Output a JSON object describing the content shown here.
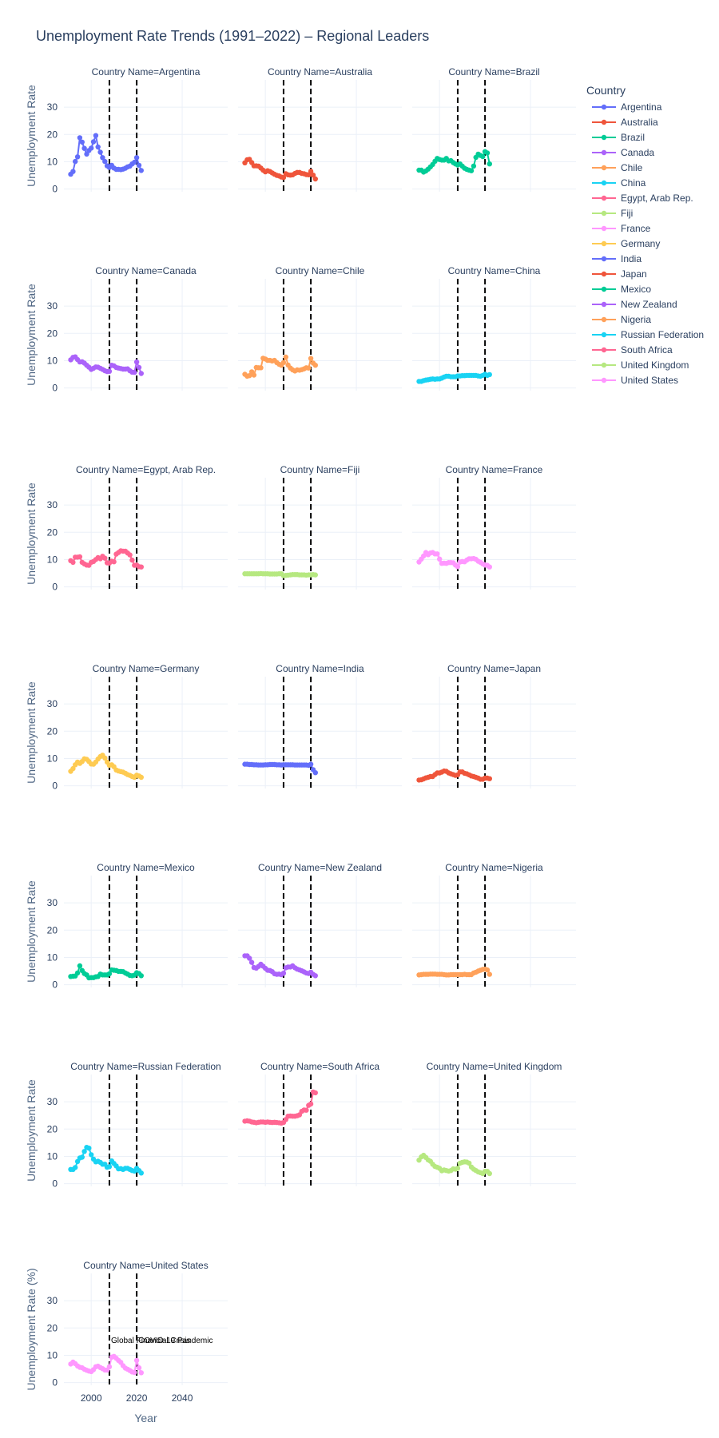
{
  "chart_data": {
    "type": "line",
    "title": "Unemployment Rate Trends (1991–2022) – Regional Leaders",
    "xlabel": "Year",
    "ylabel": "Unemployment Rate",
    "ylabel_last": "Unemployment Rate (%)",
    "facet_prefix": "Country Name=",
    "legend_title": "Country",
    "x_range": [
      1988,
      2060
    ],
    "y_range": [
      -1,
      40
    ],
    "x_ticks": [
      2000,
      2020,
      2040
    ],
    "y_ticks": [
      0,
      10,
      20,
      30
    ],
    "vlines": [
      {
        "x": 2008,
        "label": "Global Financial Crisis"
      },
      {
        "x": 2020,
        "label": "COVID-19 Pandemic"
      }
    ],
    "years_start": 1991,
    "series": [
      {
        "name": "Argentina",
        "color": "#636efa",
        "values": [
          5.4,
          6.4,
          10.1,
          11.8,
          18.8,
          17.2,
          14.9,
          12.8,
          14.1,
          15.0,
          17.3,
          19.6,
          15.4,
          13.5,
          11.5,
          10.1,
          8.5,
          7.9,
          8.7,
          7.7,
          7.2,
          7.2,
          7.1,
          7.3,
          7.6,
          8.1,
          8.4,
          9.2,
          9.8,
          11.5,
          8.7,
          6.8
        ]
      },
      {
        "name": "Australia",
        "color": "#EF553B",
        "values": [
          9.6,
          10.7,
          10.9,
          9.7,
          8.5,
          8.5,
          8.4,
          7.7,
          6.9,
          6.3,
          6.7,
          6.4,
          5.9,
          5.4,
          5.0,
          4.8,
          4.4,
          4.2,
          5.6,
          5.2,
          5.1,
          5.2,
          5.7,
          6.1,
          6.1,
          5.7,
          5.6,
          5.3,
          5.2,
          6.5,
          5.1,
          3.7
        ]
      },
      {
        "name": "Brazil",
        "color": "#00cc96",
        "values": [
          6.9,
          6.9,
          6.2,
          6.6,
          7.3,
          8.1,
          9.0,
          10.2,
          11.2,
          10.8,
          10.6,
          10.6,
          11.2,
          10.3,
          10.4,
          9.7,
          9.2,
          8.8,
          9.2,
          8.4,
          7.6,
          7.2,
          6.9,
          6.7,
          8.4,
          11.6,
          12.8,
          12.3,
          11.9,
          13.7,
          13.2,
          9.2
        ]
      },
      {
        "name": "Canada",
        "color": "#ab63fa",
        "values": [
          10.3,
          11.2,
          11.4,
          10.4,
          9.5,
          9.6,
          9.1,
          8.3,
          7.6,
          6.8,
          7.2,
          7.7,
          7.6,
          7.2,
          6.8,
          6.3,
          6.0,
          6.1,
          8.3,
          8.1,
          7.5,
          7.3,
          7.1,
          6.9,
          6.9,
          7.0,
          6.3,
          5.8,
          5.7,
          9.5,
          7.5,
          5.3
        ]
      },
      {
        "name": "Chile",
        "color": "#FFA15A",
        "values": [
          5.0,
          4.3,
          4.5,
          5.9,
          4.7,
          7.5,
          7.4,
          7.4,
          10.9,
          10.6,
          10.1,
          10.1,
          9.9,
          10.1,
          9.3,
          8.7,
          8.3,
          9.3,
          11.3,
          8.4,
          7.3,
          6.6,
          6.2,
          6.6,
          6.5,
          6.7,
          7.0,
          7.4,
          7.3,
          10.8,
          9.1,
          8.3
        ]
      },
      {
        "name": "China",
        "color": "#19d3f3",
        "values": [
          2.4,
          2.4,
          2.7,
          2.9,
          3.0,
          3.2,
          3.3,
          3.2,
          3.3,
          3.3,
          3.6,
          4.0,
          4.3,
          4.3,
          4.1,
          4.1,
          4.1,
          4.4,
          4.4,
          4.5,
          4.5,
          4.6,
          4.6,
          4.6,
          4.6,
          4.6,
          4.4,
          4.3,
          4.6,
          5.0,
          4.6,
          4.9
        ]
      },
      {
        "name": "Egypt, Arab Rep.",
        "color": "#FF6692",
        "values": [
          9.6,
          9.0,
          10.9,
          10.9,
          11.0,
          9.0,
          8.4,
          8.0,
          7.9,
          9.0,
          9.3,
          10.0,
          10.7,
          10.3,
          11.2,
          10.5,
          8.8,
          8.7,
          9.4,
          9.2,
          12.0,
          12.6,
          13.2,
          13.1,
          13.1,
          12.4,
          11.7,
          9.8,
          7.9,
          8.0,
          7.4,
          7.3
        ]
      },
      {
        "name": "Fiji",
        "color": "#B6E880",
        "values": [
          4.8,
          4.8,
          4.8,
          4.8,
          4.8,
          4.8,
          4.8,
          4.9,
          4.8,
          4.8,
          4.8,
          4.7,
          4.7,
          4.7,
          4.7,
          4.8,
          4.8,
          4.1,
          4.2,
          4.3,
          4.4,
          4.5,
          4.5,
          4.5,
          4.4,
          4.4,
          4.4,
          4.3,
          4.4,
          4.4,
          4.5,
          4.4
        ]
      },
      {
        "name": "France",
        "color": "#FF97FF",
        "values": [
          9.1,
          10.2,
          11.3,
          12.6,
          11.8,
          12.4,
          12.6,
          12.1,
          12.1,
          10.2,
          8.6,
          8.7,
          8.6,
          8.9,
          8.9,
          8.8,
          8.0,
          7.4,
          9.1,
          9.3,
          9.2,
          9.8,
          10.3,
          10.3,
          10.4,
          10.1,
          9.4,
          9.0,
          8.4,
          8.0,
          7.9,
          7.3
        ]
      },
      {
        "name": "Germany",
        "color": "#FECB52",
        "values": [
          5.3,
          6.3,
          7.7,
          8.7,
          8.2,
          8.9,
          9.9,
          9.7,
          8.9,
          8.0,
          7.9,
          8.7,
          9.8,
          10.7,
          11.2,
          10.2,
          8.7,
          7.5,
          7.7,
          7.0,
          5.8,
          5.4,
          5.2,
          5.0,
          4.6,
          4.1,
          3.8,
          3.4,
          3.1,
          3.9,
          3.6,
          3.1
        ]
      },
      {
        "name": "India",
        "color": "#636efa",
        "values": [
          7.9,
          7.9,
          7.8,
          7.8,
          7.7,
          7.7,
          7.6,
          7.6,
          7.6,
          7.7,
          7.7,
          7.8,
          7.8,
          7.8,
          7.7,
          7.7,
          7.6,
          7.7,
          7.7,
          7.7,
          7.7,
          7.7,
          7.6,
          7.6,
          7.6,
          7.6,
          7.6,
          7.6,
          7.5,
          7.9,
          5.9,
          4.8
        ]
      },
      {
        "name": "Japan",
        "color": "#EF553B",
        "values": [
          2.1,
          2.2,
          2.5,
          2.9,
          3.1,
          3.4,
          3.4,
          4.1,
          4.7,
          4.7,
          5.0,
          5.4,
          5.3,
          4.7,
          4.4,
          4.1,
          3.8,
          4.0,
          5.1,
          5.1,
          4.6,
          4.4,
          4.0,
          3.6,
          3.4,
          3.1,
          2.8,
          2.4,
          2.4,
          2.8,
          2.8,
          2.6
        ]
      },
      {
        "name": "Mexico",
        "color": "#00cc96",
        "values": [
          3.0,
          3.1,
          3.2,
          4.3,
          6.9,
          5.2,
          4.1,
          3.6,
          2.5,
          2.6,
          2.6,
          2.9,
          3.0,
          3.9,
          3.6,
          3.6,
          3.6,
          4.0,
          5.4,
          5.3,
          5.2,
          4.9,
          4.9,
          4.8,
          4.3,
          3.9,
          3.4,
          3.3,
          3.5,
          4.4,
          4.1,
          3.3
        ]
      },
      {
        "name": "New Zealand",
        "color": "#ab63fa",
        "values": [
          10.6,
          10.6,
          9.7,
          8.2,
          6.3,
          6.1,
          6.7,
          7.5,
          6.8,
          6.0,
          5.3,
          5.2,
          4.8,
          4.0,
          3.8,
          3.9,
          3.7,
          4.2,
          6.2,
          6.5,
          6.5,
          6.9,
          6.2,
          5.7,
          5.4,
          5.1,
          4.7,
          4.3,
          4.1,
          4.6,
          3.8,
          3.3
        ]
      },
      {
        "name": "Nigeria",
        "color": "#FFA15A",
        "values": [
          3.6,
          3.7,
          3.8,
          3.8,
          3.8,
          3.9,
          3.9,
          3.9,
          3.8,
          3.8,
          3.8,
          3.7,
          3.6,
          3.6,
          3.7,
          3.7,
          3.7,
          3.7,
          3.7,
          3.7,
          3.8,
          3.7,
          3.7,
          3.7,
          4.3,
          4.6,
          5.0,
          5.3,
          5.6,
          5.7,
          5.4,
          3.8
        ]
      },
      {
        "name": "Russian Federation",
        "color": "#19d3f3",
        "values": [
          5.2,
          5.2,
          5.9,
          8.1,
          9.4,
          9.7,
          11.8,
          13.3,
          13.0,
          10.6,
          9.0,
          8.0,
          8.2,
          7.8,
          7.1,
          7.1,
          6.0,
          6.2,
          8.3,
          7.4,
          6.5,
          5.4,
          5.5,
          5.2,
          5.6,
          5.6,
          5.2,
          4.8,
          4.6,
          5.6,
          4.8,
          3.9
        ]
      },
      {
        "name": "South Africa",
        "color": "#FF6692",
        "values": [
          22.9,
          23.0,
          22.9,
          22.6,
          22.5,
          22.3,
          22.5,
          22.6,
          22.6,
          22.5,
          22.6,
          22.5,
          22.4,
          22.5,
          22.4,
          22.3,
          22.2,
          22.4,
          23.5,
          24.7,
          24.8,
          24.7,
          24.7,
          24.9,
          25.2,
          26.5,
          27.0,
          26.9,
          28.7,
          29.2,
          33.6,
          33.3
        ]
      },
      {
        "name": "United Kingdom",
        "color": "#B6E880",
        "values": [
          8.6,
          9.8,
          10.4,
          9.6,
          8.7,
          8.2,
          7.1,
          6.3,
          6.0,
          5.6,
          4.7,
          5.0,
          4.8,
          4.6,
          4.8,
          5.4,
          5.3,
          5.6,
          7.5,
          7.8,
          8.0,
          7.9,
          7.5,
          6.1,
          5.3,
          4.8,
          4.3,
          4.0,
          3.7,
          4.5,
          4.5,
          3.7
        ]
      },
      {
        "name": "United States",
        "color": "#FF97FF",
        "values": [
          6.8,
          7.5,
          6.9,
          6.1,
          5.6,
          5.4,
          4.9,
          4.5,
          4.2,
          4.0,
          4.7,
          5.8,
          6.0,
          5.5,
          5.1,
          4.6,
          4.6,
          5.8,
          9.3,
          9.6,
          8.9,
          8.1,
          7.4,
          6.2,
          5.3,
          4.9,
          4.4,
          3.9,
          3.7,
          8.1,
          5.4,
          3.6
        ]
      }
    ]
  }
}
